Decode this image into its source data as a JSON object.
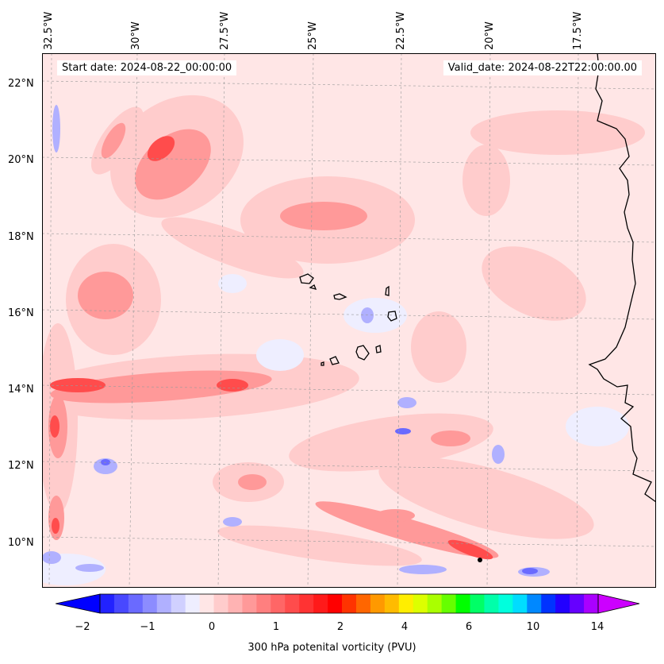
{
  "header": {
    "start_date": "Start date: 2024-08-22_00:00:00",
    "valid_date": "Valid_date: 2024-08-22T22:00:00.00"
  },
  "axes": {
    "longitude_labels": [
      "32.5°W",
      "30°W",
      "27.5°W",
      "25°W",
      "22.5°W",
      "20°W",
      "17.5°W"
    ],
    "latitude_labels": [
      "22°N",
      "20°N",
      "18°N",
      "16°N",
      "14°N",
      "12°N",
      "10°N"
    ],
    "longitude_values": [
      -32.5,
      -30,
      -27.5,
      -25,
      -22.5,
      -20,
      -17.5
    ],
    "latitude_values": [
      22,
      20,
      18,
      16,
      14,
      12,
      10
    ],
    "lon_range": [
      -33.0,
      -15.8
    ],
    "lat_range": [
      8.9,
      22.8
    ],
    "gridlines": true
  },
  "colorbar": {
    "label": "300 hPa potenital vorticity (PVU)",
    "tick_labels": [
      "−2",
      "−1",
      "0",
      "1",
      "2",
      "4",
      "6",
      "10",
      "14"
    ],
    "tick_values": [
      -2,
      -1,
      0,
      1,
      2,
      4,
      6,
      10,
      14
    ],
    "extend": "both",
    "colors": [
      "#0000ff",
      "#2222ff",
      "#4848ff",
      "#6a6aff",
      "#8c8cff",
      "#b0b0ff",
      "#d0d0ff",
      "#eeeeff",
      "#ffe6e6",
      "#ffcccc",
      "#ffb3b3",
      "#ff9999",
      "#ff7f7f",
      "#ff6666",
      "#ff4c4c",
      "#ff3333",
      "#ff1a1a",
      "#ff0000",
      "#ff3300",
      "#ff6600",
      "#ff9900",
      "#ffbb00",
      "#ffee00",
      "#ddff00",
      "#aaff00",
      "#66ff00",
      "#00ff00",
      "#00ff66",
      "#00ffaa",
      "#00ffdd",
      "#00ddff",
      "#0088ff",
      "#0033ff",
      "#2200ff",
      "#6600ff",
      "#aa00ff",
      "#cc00ff"
    ]
  }
}
